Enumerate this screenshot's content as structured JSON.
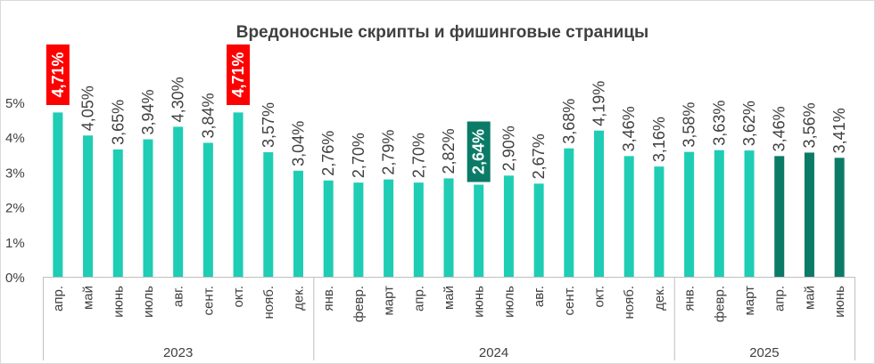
{
  "chart_data": {
    "type": "bar",
    "title": "Вредоносные скрипты и фишинговые страницы",
    "yticks": [
      "0%",
      "1%",
      "2%",
      "3%",
      "4%",
      "5%"
    ],
    "ylim": [
      0,
      5
    ],
    "grid": false,
    "legend": "none",
    "groups": [
      {
        "year": "2023",
        "count": 9
      },
      {
        "year": "2024",
        "count": 12
      },
      {
        "year": "2025",
        "count": 6
      }
    ],
    "categories": [
      "апр.",
      "май",
      "июнь",
      "июль",
      "авг.",
      "сент.",
      "окт.",
      "нояб.",
      "дек.",
      "янв.",
      "февр.",
      "март",
      "апр.",
      "май",
      "июнь",
      "июль",
      "авг.",
      "сент.",
      "окт.",
      "нояб.",
      "дек.",
      "янв.",
      "февр.",
      "март",
      "апр.",
      "май",
      "июнь"
    ],
    "values": [
      4.71,
      4.05,
      3.65,
      3.94,
      4.3,
      3.84,
      4.71,
      3.57,
      3.04,
      2.76,
      2.7,
      2.79,
      2.7,
      2.82,
      2.64,
      2.9,
      2.67,
      3.68,
      4.19,
      3.46,
      3.16,
      3.58,
      3.63,
      3.62,
      3.46,
      3.56,
      3.41
    ],
    "labels": [
      "4,71%",
      "4,05%",
      "3,65%",
      "3,94%",
      "4,30%",
      "3,84%",
      "4,71%",
      "3,57%",
      "3,04%",
      "2,76%",
      "2,70%",
      "2,79%",
      "2,70%",
      "2,82%",
      "2,64%",
      "2,90%",
      "2,67%",
      "3,68%",
      "4,19%",
      "3,46%",
      "3,16%",
      "3,58%",
      "3,63%",
      "3,62%",
      "3,46%",
      "3,56%",
      "3,41%"
    ],
    "bar_style": [
      "normal",
      "normal",
      "normal",
      "normal",
      "normal",
      "normal",
      "normal",
      "normal",
      "normal",
      "normal",
      "normal",
      "normal",
      "normal",
      "normal",
      "normal",
      "normal",
      "normal",
      "normal",
      "normal",
      "normal",
      "normal",
      "normal",
      "normal",
      "normal",
      "dark",
      "dark",
      "dark"
    ],
    "label_style": [
      "red",
      "normal",
      "normal",
      "normal",
      "normal",
      "normal",
      "red",
      "normal",
      "normal",
      "normal",
      "normal",
      "normal",
      "normal",
      "normal",
      "green",
      "normal",
      "normal",
      "normal",
      "normal",
      "normal",
      "normal",
      "normal",
      "normal",
      "normal",
      "normal",
      "normal",
      "normal"
    ],
    "colors": {
      "bar": "#1ecdb4",
      "bar_dark": "#0b7b67",
      "highlight_max": "#ff0000",
      "highlight_min": "#0b7b67",
      "axis": "#bfbfbf",
      "text": "#404040"
    }
  }
}
